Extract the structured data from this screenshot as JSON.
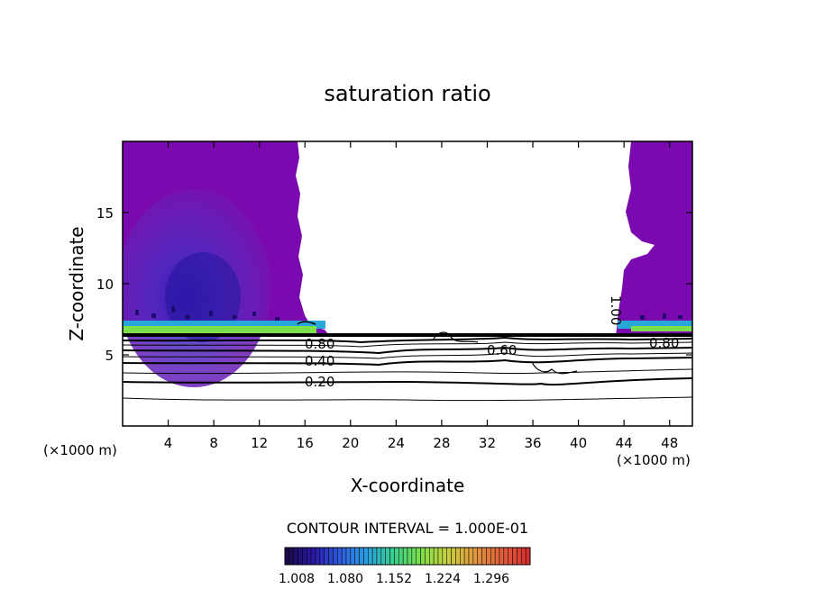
{
  "chart_data": {
    "type": "contour",
    "title": "saturation ratio",
    "xlabel": "X-coordinate",
    "ylabel": "Z-coordinate",
    "x_unit": "(×1000 m)",
    "xlim": [
      0,
      50
    ],
    "ylim": [
      0,
      20
    ],
    "x_ticks": [
      4,
      8,
      12,
      16,
      20,
      24,
      28,
      32,
      36,
      40,
      44,
      48
    ],
    "y_ticks": [
      5,
      10,
      15
    ],
    "contour_interval_label": "CONTOUR INTERVAL = 1.000E-01",
    "contour_line_labels": [
      {
        "text": "0.20",
        "x": 17.5,
        "z": 3.1
      },
      {
        "text": "0.40",
        "x": 17.5,
        "z": 4.5
      },
      {
        "text": "0.60",
        "x": 33.0,
        "z": 5.2
      },
      {
        "text": "0.80",
        "x": 17.5,
        "z": 5.7
      },
      {
        "text": "0.80",
        "x": 47.5,
        "z": 5.8
      },
      {
        "text": "1.00",
        "x": 43.0,
        "z": 8.3
      }
    ],
    "colorbar": {
      "colors": [
        "#1a0a4a",
        "#2a18a8",
        "#2e5fe0",
        "#2aa0e0",
        "#39d08c",
        "#7ee04a",
        "#c8d040",
        "#e09a40",
        "#e0603c",
        "#d83030"
      ],
      "tick_labels": [
        "1.008",
        "1.080",
        "1.152",
        "1.224",
        "1.296"
      ]
    }
  }
}
